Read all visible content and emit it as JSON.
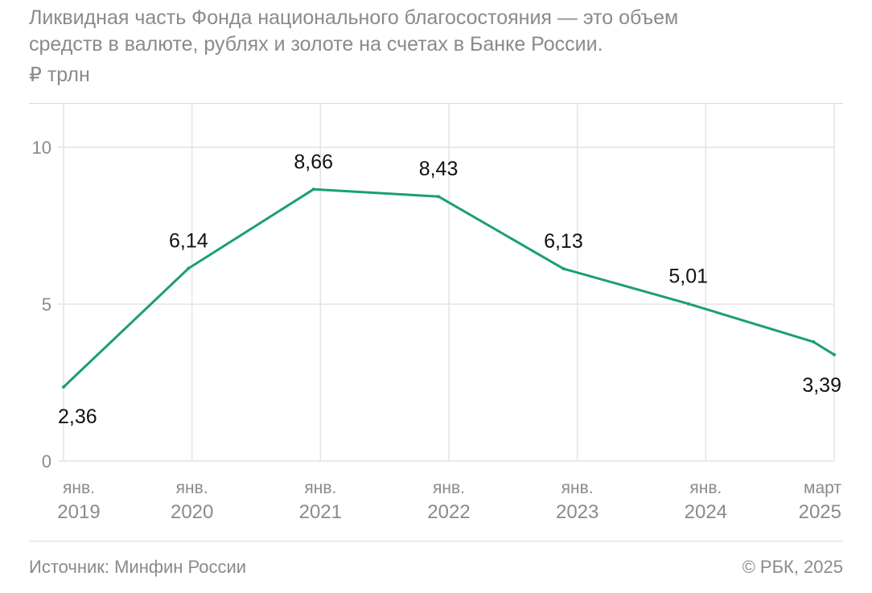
{
  "header": {
    "title_line1": "Ликвидная часть Фонда национального благосостояния — это объем",
    "title_line2": "средств в валюте, рублях и золоте на счетах в Банке России.",
    "unit": "₽ трлн"
  },
  "footer": {
    "source": "Источник: Минфин России",
    "copyright": "© РБК, 2025"
  },
  "colors": {
    "line": "#1aa06d",
    "grid": "#e3e3e3",
    "muted_text": "#8a8a8a",
    "label_text": "#111111"
  },
  "chart_data": {
    "type": "line",
    "title": "Ликвидная часть Фонда национального благосостояния — это объем средств в валюте, рублях и золоте на счетах в Банке России.",
    "ylabel": "₽ трлн",
    "xlabel": "",
    "ylim": [
      0,
      10
    ],
    "yticks": [
      "0",
      "5",
      "10"
    ],
    "grid": true,
    "x_labels": [
      {
        "line1": "янв.",
        "line2": "2019"
      },
      {
        "line1": "янв.",
        "line2": "2020"
      },
      {
        "line1": "янв.",
        "line2": "2021"
      },
      {
        "line1": "янв.",
        "line2": "2022"
      },
      {
        "line1": "янв.",
        "line2": "2023"
      },
      {
        "line1": "янв.",
        "line2": "2024"
      },
      {
        "line1": "март",
        "line2": "2025"
      }
    ],
    "points": [
      {
        "x": "2019-01",
        "y": 2.36,
        "label": "2,36"
      },
      {
        "x": "2020-01",
        "y": 6.14,
        "label": "6,14"
      },
      {
        "x": "2021-01",
        "y": 8.66,
        "label": "8,66"
      },
      {
        "x": "2022-01",
        "y": 8.43,
        "label": "8,43"
      },
      {
        "x": "2023-01",
        "y": 6.13,
        "label": "6,13"
      },
      {
        "x": "2024-01",
        "y": 5.01,
        "label": "5,01"
      },
      {
        "x": "2025-01",
        "y": 3.8,
        "label": ""
      },
      {
        "x": "2025-03",
        "y": 3.39,
        "label": "3,39"
      }
    ]
  }
}
